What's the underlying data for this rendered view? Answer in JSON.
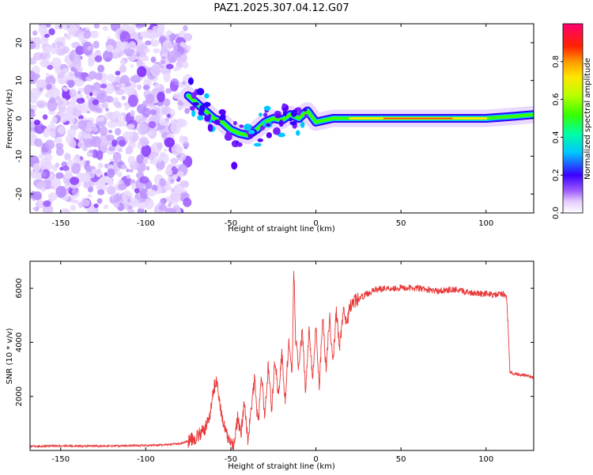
{
  "chart_data": [
    {
      "type": "heatmap",
      "title": "PAZ1.2025.307.04.12.G07",
      "xlabel": "Height of straight line (km)",
      "ylabel": "Frequency (Hz)",
      "xlim": [
        -168,
        128
      ],
      "ylim": [
        -25,
        25
      ],
      "xticks": [
        -150,
        -100,
        -50,
        0,
        50,
        100
      ],
      "yticks": [
        -20,
        -10,
        0,
        10,
        20
      ],
      "colorbar": {
        "label": "Normalized spectral amplitude",
        "range": [
          0.0,
          1.0
        ],
        "ticks": [
          0.0,
          0.2,
          0.4,
          0.6,
          0.8
        ]
      },
      "ridge": [
        {
          "x": -75,
          "y": 6
        },
        {
          "x": -70,
          "y": 4
        },
        {
          "x": -65,
          "y": 2
        },
        {
          "x": -60,
          "y": 0
        },
        {
          "x": -55,
          "y": -1
        },
        {
          "x": -50,
          "y": -3
        },
        {
          "x": -45,
          "y": -4
        },
        {
          "x": -40,
          "y": -4.5
        },
        {
          "x": -35,
          "y": -3
        },
        {
          "x": -30,
          "y": -1
        },
        {
          "x": -25,
          "y": 0
        },
        {
          "x": -20,
          "y": -0.5
        },
        {
          "x": -15,
          "y": 1
        },
        {
          "x": -10,
          "y": 0
        },
        {
          "x": -5,
          "y": 2
        },
        {
          "x": 0,
          "y": -1
        },
        {
          "x": 5,
          "y": -0.5
        },
        {
          "x": 10,
          "y": 0
        },
        {
          "x": 20,
          "y": 0
        },
        {
          "x": 40,
          "y": 0
        },
        {
          "x": 60,
          "y": 0
        },
        {
          "x": 80,
          "y": 0
        },
        {
          "x": 100,
          "y": 0
        },
        {
          "x": 115,
          "y": 0.5
        },
        {
          "x": 128,
          "y": 1
        }
      ]
    },
    {
      "type": "line",
      "xlabel": "Height of straight line (km)",
      "ylabel": "SNR (10 * v/v)",
      "xlim": [
        -168,
        128
      ],
      "ylim": [
        0,
        7000
      ],
      "xticks": [
        -150,
        -100,
        -50,
        0,
        50,
        100
      ],
      "yticks": [
        2000,
        4000,
        6000
      ],
      "color": "#e8393a",
      "series": [
        {
          "name": "SNR",
          "x": [
            -168,
            -150,
            -130,
            -110,
            -90,
            -80,
            -75,
            -70,
            -65,
            -62,
            -60,
            -58,
            -56,
            -54,
            -52,
            -50,
            -48,
            -46,
            -44,
            -42,
            -40,
            -38,
            -36,
            -34,
            -32,
            -30,
            -28,
            -26,
            -24,
            -22,
            -20,
            -18,
            -16,
            -14,
            -13,
            -12,
            -10,
            -8,
            -6,
            -4,
            -2,
            0,
            2,
            4,
            6,
            8,
            10,
            12,
            14,
            16,
            18,
            20,
            22,
            25,
            30,
            35,
            40,
            45,
            50,
            60,
            70,
            80,
            90,
            100,
            105,
            110,
            112,
            113,
            114,
            116,
            120,
            125,
            128
          ],
          "y": [
            150,
            170,
            160,
            180,
            200,
            250,
            350,
            500,
            800,
            1400,
            2300,
            2600,
            1500,
            900,
            500,
            300,
            250,
            1200,
            600,
            1800,
            400,
            1500,
            2700,
            900,
            2800,
            1200,
            3200,
            1500,
            3400,
            2000,
            3600,
            1800,
            4000,
            2700,
            6900,
            4200,
            3000,
            4400,
            2200,
            4600,
            2600,
            4500,
            2400,
            5000,
            3000,
            5000,
            3200,
            5200,
            3800,
            5200,
            4600,
            5300,
            5500,
            5600,
            5800,
            5950,
            6000,
            6000,
            6020,
            6000,
            5900,
            5950,
            5850,
            5800,
            5750,
            5800,
            5700,
            4500,
            2900,
            2850,
            2800,
            2750,
            2700
          ]
        }
      ]
    }
  ]
}
